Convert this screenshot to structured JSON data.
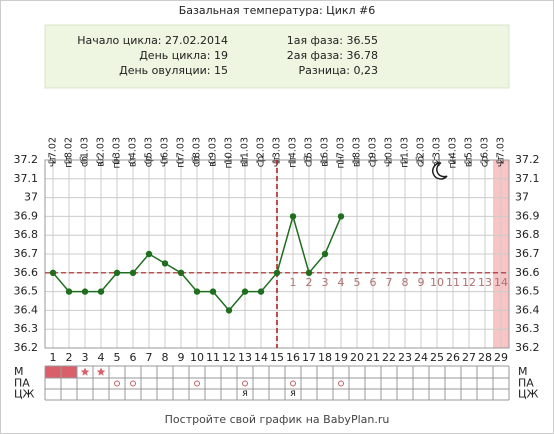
{
  "chart_data": {
    "type": "line",
    "title": "Базальная температура: Цикл #6",
    "info_left": [
      "Начало цикла: 27.02.2014",
      "День цикла: 19",
      "День овуляции: 15"
    ],
    "info_right": [
      "1ая фаза: 36.55",
      "2ая фаза: 36.78",
      "Разница: 0,23"
    ],
    "x": [
      1,
      2,
      3,
      4,
      5,
      6,
      7,
      8,
      9,
      10,
      11,
      12,
      13,
      14,
      15,
      16,
      17,
      18,
      19,
      20,
      21,
      22,
      23,
      24,
      25,
      26,
      27,
      28,
      29
    ],
    "weekdays": [
      "чт",
      "пт",
      "сб",
      "вс",
      "пн",
      "вт",
      "ср",
      "чт",
      "пт",
      "сб",
      "вс",
      "пн",
      "вт",
      "ср",
      "чт",
      "пт",
      "сб",
      "вс",
      "пн",
      "вт",
      "ср",
      "чт",
      "пт",
      "сб",
      "вс",
      "пн",
      "вт",
      "ср",
      "чт"
    ],
    "dates": [
      "27.02",
      "28.02",
      "01.03",
      "02.03",
      "03.03",
      "04.03",
      "05.03",
      "06.03",
      "07.03",
      "08.03",
      "09.03",
      "10.03",
      "11.03",
      "12.03",
      "13.03",
      "14.03",
      "15.03",
      "16.03",
      "17.03",
      "18.03",
      "19.03",
      "20.03",
      "21.03",
      "22.03",
      "23.03",
      "24.03",
      "25.03",
      "26.03",
      "27.03"
    ],
    "series": [
      {
        "name": "Температура",
        "color": "#1e6e1e",
        "values": [
          36.6,
          36.5,
          36.5,
          36.5,
          36.6,
          36.6,
          36.7,
          36.65,
          36.6,
          36.5,
          36.5,
          36.4,
          36.5,
          36.5,
          36.6,
          36.9,
          36.6,
          36.7,
          36.9,
          null,
          null,
          null,
          null,
          null,
          null,
          null,
          null,
          null,
          null
        ]
      }
    ],
    "coverline": 36.6,
    "ovulation_day": 15,
    "highlight_day": 29,
    "phase2_labels": [
      1,
      2,
      3,
      4,
      5,
      6,
      7,
      8,
      9,
      10,
      11,
      12,
      13,
      14
    ],
    "ylim": [
      36.2,
      37.2
    ],
    "yticks": [
      37.2,
      37.1,
      37,
      36.9,
      36.8,
      36.7,
      36.6,
      36.5,
      36.4,
      36.3,
      36.2
    ],
    "grid": true,
    "row_labels": [
      "М",
      "ПА",
      "ЦЖ"
    ],
    "m_days": [
      1,
      2
    ],
    "star_days": [
      3,
      4
    ],
    "pa_days": [
      5,
      6,
      10,
      13,
      16,
      19
    ],
    "cm_marks": [
      {
        "day": 13,
        "label": "я"
      },
      {
        "day": 16,
        "label": "я"
      }
    ],
    "footer": "Постройте свой график на BabyPlan.ru"
  }
}
